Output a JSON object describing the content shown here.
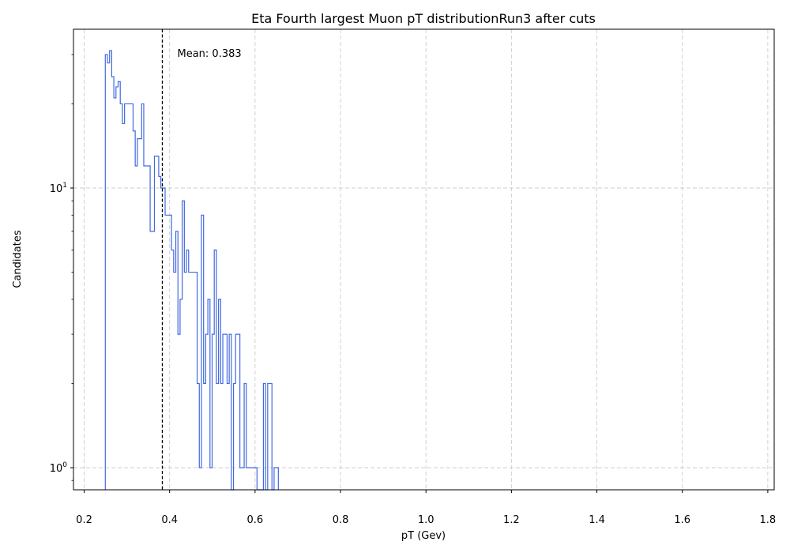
{
  "chart_data": {
    "type": "histogram",
    "title": "Eta Fourth largest Muon pT distributionRun3 after cuts",
    "xlabel": "pT (Gev)",
    "ylabel": "Candidates",
    "yscale": "log",
    "xlim": [
      0.175,
      1.815
    ],
    "ylim": [
      0.85,
      40
    ],
    "grid": true,
    "xticks": [
      0.2,
      0.4,
      0.6,
      0.8,
      1.0,
      1.2,
      1.4,
      1.6,
      1.8
    ],
    "xtick_labels": [
      "0.2",
      "0.4",
      "0.6",
      "0.8",
      "1.0",
      "1.2",
      "1.4",
      "1.6",
      "1.8"
    ],
    "yticks": [
      1,
      10
    ],
    "ytick_labels": [
      {
        "base": "10",
        "exp": "0"
      },
      {
        "base": "10",
        "exp": "1"
      }
    ],
    "mean": 0.383,
    "mean_label": "Mean: 0.383",
    "line_color": "#4169e1",
    "bins": [
      [
        0.2495,
        0.2545,
        30
      ],
      [
        0.2545,
        0.2595,
        28
      ],
      [
        0.2595,
        0.2645,
        31
      ],
      [
        0.2645,
        0.2695,
        25
      ],
      [
        0.2695,
        0.2745,
        21
      ],
      [
        0.2745,
        0.2795,
        23
      ],
      [
        0.2795,
        0.2845,
        24
      ],
      [
        0.2845,
        0.2895,
        20
      ],
      [
        0.2895,
        0.2945,
        17
      ],
      [
        0.2945,
        0.3045,
        20
      ],
      [
        0.3045,
        0.3095,
        20
      ],
      [
        0.3095,
        0.3145,
        20
      ],
      [
        0.3145,
        0.3195,
        16
      ],
      [
        0.3195,
        0.3245,
        12
      ],
      [
        0.3245,
        0.3345,
        15
      ],
      [
        0.3345,
        0.3395,
        20
      ],
      [
        0.3395,
        0.3445,
        12
      ],
      [
        0.3445,
        0.3545,
        12
      ],
      [
        0.3545,
        0.3595,
        7
      ],
      [
        0.3595,
        0.3645,
        7
      ],
      [
        0.3645,
        0.3695,
        13
      ],
      [
        0.3695,
        0.3745,
        13
      ],
      [
        0.3745,
        0.3795,
        11
      ],
      [
        0.3795,
        0.3845,
        10
      ],
      [
        0.3845,
        0.3895,
        10
      ],
      [
        0.3895,
        0.3945,
        8
      ],
      [
        0.3945,
        0.3995,
        8
      ],
      [
        0.3995,
        0.4045,
        8
      ],
      [
        0.4045,
        0.4095,
        6
      ],
      [
        0.4095,
        0.4145,
        5
      ],
      [
        0.4145,
        0.4195,
        7
      ],
      [
        0.4195,
        0.4245,
        3
      ],
      [
        0.4245,
        0.4295,
        4
      ],
      [
        0.4295,
        0.4345,
        9
      ],
      [
        0.4345,
        0.4395,
        5
      ],
      [
        0.4395,
        0.4445,
        6
      ],
      [
        0.4445,
        0.4495,
        5
      ],
      [
        0.4495,
        0.4545,
        5
      ],
      [
        0.4545,
        0.4595,
        5
      ],
      [
        0.4595,
        0.4645,
        5
      ],
      [
        0.4645,
        0.4695,
        2
      ],
      [
        0.4695,
        0.4745,
        1
      ],
      [
        0.4745,
        0.4795,
        8
      ],
      [
        0.4795,
        0.4845,
        2
      ],
      [
        0.4845,
        0.4895,
        3
      ],
      [
        0.4895,
        0.4945,
        4
      ],
      [
        0.4945,
        0.4995,
        1
      ],
      [
        0.4995,
        0.5045,
        3
      ],
      [
        0.5045,
        0.5095,
        6
      ],
      [
        0.5095,
        0.5145,
        2
      ],
      [
        0.5145,
        0.5195,
        4
      ],
      [
        0.5195,
        0.5245,
        2
      ],
      [
        0.5245,
        0.5295,
        3
      ],
      [
        0.5295,
        0.5345,
        3
      ],
      [
        0.5345,
        0.5395,
        2
      ],
      [
        0.5395,
        0.5445,
        3
      ],
      [
        0.5445,
        0.5495,
        0
      ],
      [
        0.5495,
        0.5545,
        2
      ],
      [
        0.5545,
        0.5645,
        3
      ],
      [
        0.5645,
        0.5695,
        1
      ],
      [
        0.5695,
        0.5745,
        1
      ],
      [
        0.5745,
        0.5795,
        2
      ],
      [
        0.5795,
        0.5845,
        1
      ],
      [
        0.5845,
        0.5895,
        1
      ],
      [
        0.5895,
        0.5945,
        1
      ],
      [
        0.5945,
        0.5995,
        1
      ],
      [
        0.5995,
        0.6045,
        1
      ],
      [
        0.6045,
        0.6095,
        0
      ],
      [
        0.6095,
        0.6145,
        0
      ],
      [
        0.6145,
        0.6195,
        0
      ],
      [
        0.6195,
        0.6245,
        2
      ],
      [
        0.6245,
        0.6295,
        0
      ],
      [
        0.6295,
        0.6345,
        2
      ],
      [
        0.6345,
        0.6395,
        2
      ],
      [
        0.6395,
        0.6445,
        0
      ],
      [
        0.6445,
        0.6495,
        1
      ],
      [
        0.6495,
        0.6545,
        1
      ]
    ]
  }
}
